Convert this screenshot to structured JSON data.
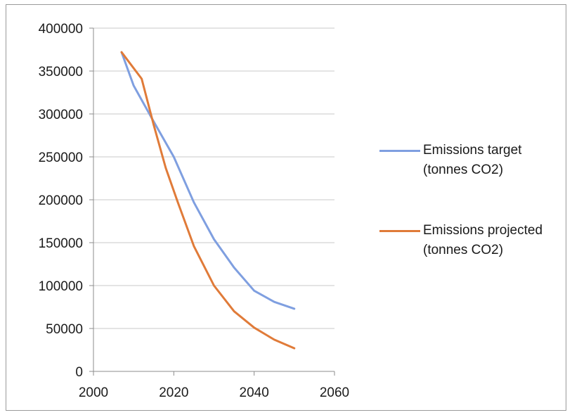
{
  "chart_data": {
    "type": "line",
    "title": "",
    "xlabel": "",
    "ylabel": "",
    "xlim": [
      2000,
      2060
    ],
    "ylim": [
      0,
      400000
    ],
    "x_ticks": [
      "2000",
      "2020",
      "2040",
      "2060"
    ],
    "y_ticks": [
      "0",
      "50000",
      "100000",
      "150000",
      "200000",
      "250000",
      "300000",
      "350000",
      "400000"
    ],
    "grid": "horizontal",
    "legend_position": "right",
    "series": [
      {
        "name": "Emissions target (tonnes CO2)",
        "color": "#7f9fe0",
        "x": [
          2007,
          2010,
          2015,
          2020,
          2025,
          2030,
          2035,
          2040,
          2045,
          2050
        ],
        "y": [
          372000,
          333000,
          291000,
          250000,
          197000,
          154000,
          121000,
          94000,
          81000,
          73000
        ]
      },
      {
        "name": "Emissions projected (tonnes CO2)",
        "color": "#e07b39",
        "x": [
          2007,
          2012,
          2015,
          2018,
          2021,
          2025,
          2030,
          2035,
          2040,
          2045,
          2050
        ],
        "y": [
          372000,
          341000,
          287000,
          237000,
          197000,
          146000,
          100000,
          70000,
          51000,
          37000,
          27000
        ]
      }
    ]
  }
}
